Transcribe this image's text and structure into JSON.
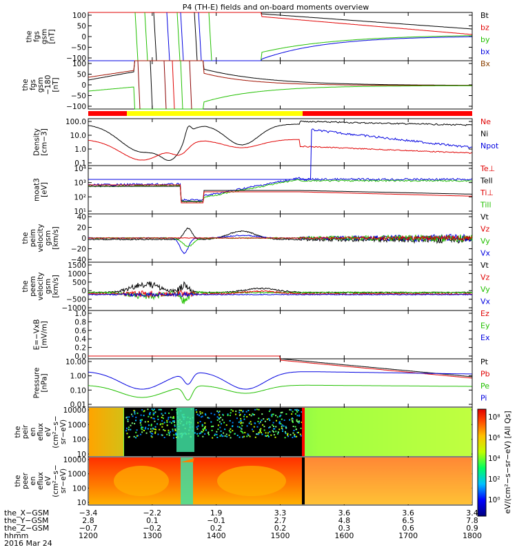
{
  "title": "P4 (TH-E) fields and on-board moments overview",
  "colors": {
    "black": "#000000",
    "red": "#e00000",
    "green": "#22c000",
    "blue": "#0000e0",
    "yellow": "#ffff00",
    "barRed": "#ff0000"
  },
  "chart_data": {
    "type": "line",
    "panels": [
      {
        "ylabel": [
          "the",
          "fgs",
          "gsm",
          "[nT]"
        ],
        "yticks": [
          "100",
          "50",
          "0",
          "−50",
          "−100"
        ],
        "legend": [
          "Bt",
          "bz",
          "by",
          "bx"
        ]
      },
      {
        "ylabel": [
          "the",
          "fgs",
          "gsm",
          "−180",
          "[nT]"
        ],
        "yticks": [
          "100",
          "50",
          "0",
          "−50",
          "−100"
        ],
        "legend": [
          "Bx"
        ]
      },
      {
        "ylabel": [
          "Density",
          "[cm−3]"
        ],
        "yticks": [
          "100.0",
          "10.0",
          "1.0",
          "0.1"
        ],
        "legend": [
          "Ne",
          "Ni",
          "Npot"
        ]
      },
      {
        "ylabel": [
          "moat3",
          "[eV]"
        ],
        "yticks": [
          "10⁴",
          "10³",
          "10²",
          "10¹"
        ],
        "legend": [
          "Te⊥",
          "Tell",
          "Ti⊥",
          "Till"
        ]
      },
      {
        "ylabel": [
          "the",
          "peim",
          "velocity",
          "gsm",
          "[km/s]"
        ],
        "yticks": [
          "40",
          "20",
          "0",
          "−20",
          "−40"
        ],
        "legend": [
          "Vt",
          "Vz",
          "Vy",
          "Vx"
        ]
      },
      {
        "ylabel": [
          "the",
          "peem",
          "velocity",
          "gsm",
          "[km/s]"
        ],
        "yticks": [
          "1500",
          "1000",
          "500",
          "0",
          "−500",
          "−1000"
        ],
        "legend": [
          "Vt",
          "Vz",
          "Vy",
          "Vx"
        ]
      },
      {
        "ylabel": [
          "E=−VxB",
          "[mV/m]"
        ],
        "yticks": [
          "1.0",
          "0.8",
          "0.6",
          "0.4",
          "0.2",
          "0.0"
        ],
        "legend": [
          "Ez",
          "Ey",
          "Ex"
        ]
      },
      {
        "ylabel": [
          "Pressure",
          "[nPa]"
        ],
        "yticks": [
          "10.00",
          "1.00",
          "0.10",
          "0.01"
        ],
        "legend": [
          "Pt",
          "Pb",
          "Pe",
          "Pi"
        ]
      },
      {
        "ylabel": [
          "the",
          "peir",
          "en",
          "eflux",
          "eV",
          "(cm²−s−",
          "sr−eV)"
        ],
        "yticks": [
          "10000",
          "1000",
          "100",
          "10"
        ],
        "legend": []
      },
      {
        "ylabel": [
          "the",
          "peer",
          "en",
          "eflux",
          "eV",
          "(cm²−s−",
          "sr−eV)"
        ],
        "yticks": [
          "10000",
          "1000",
          "100",
          "10"
        ],
        "legend": []
      }
    ],
    "colorbar": {
      "ticks": [
        "10⁸",
        "10⁶",
        "10⁴",
        "10²",
        "10⁰"
      ],
      "label": "eV/(cm²−s−sr−eV) [All Qs]"
    },
    "x_axis": {
      "row_labels": [
        "the_X−GSM",
        "the_Y−GSM",
        "the_Z−GSM",
        "hhmm",
        "2016 Mar 24"
      ],
      "columns": [
        [
          "−3.4",
          "2.8",
          "−0.7",
          "1200"
        ],
        [
          "−2.2",
          "0.1",
          "−0.2",
          "1300"
        ],
        [
          "1.9",
          "−0.1",
          "0.2",
          "1400"
        ],
        [
          "3.3",
          "2.7",
          "0.2",
          "1500"
        ],
        [
          "3.6",
          "4.8",
          "0.3",
          "1600"
        ],
        [
          "3.6",
          "6.5",
          "0.6",
          "1700"
        ],
        [
          "3.4",
          "7.8",
          "0.9",
          "1800"
        ]
      ]
    }
  }
}
